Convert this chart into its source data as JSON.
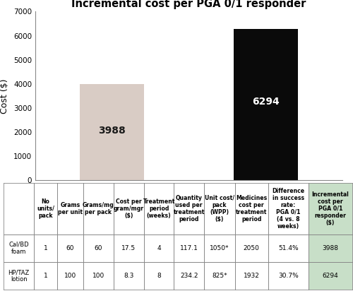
{
  "title": "Incremental cost per PGA 0/1 responder",
  "categories": [
    "Cal/BD foam",
    "HP/TAZ lotion"
  ],
  "values": [
    3988,
    6294
  ],
  "bar_colors": [
    "#d9ccc5",
    "#0a0a0a"
  ],
  "bar_label_colors": [
    "#1a1a1a",
    "#ffffff"
  ],
  "ylabel": "Cost ($)",
  "ylim": [
    0,
    7000
  ],
  "yticks": [
    0,
    1000,
    2000,
    3000,
    4000,
    5000,
    6000,
    7000
  ],
  "table_headers": [
    "No\nunits/\npack",
    "Grams\nper unit",
    "Grams/mg\nper pack",
    "Cost per\ngram/mgr\n($)",
    "Treatment\nperiod\n(weeks)",
    "Quantity\nused per\ntreatment\nperiod",
    "Unit cost/\npack\n(WPP)\n($)",
    "Medicines\ncost per\ntreatment\nperiod",
    "Difference\nin success\nrate:\nPGA 0/1\n(4 vs. 8\nweeks)",
    "Incremental\ncost per\nPGA 0/1\nresponder\n($)"
  ],
  "row_labels": [
    "Cal/BD\nfoam",
    "HP/TAZ\nlotion"
  ],
  "table_data": [
    [
      "1",
      "60",
      "60",
      "17.5",
      "4",
      "117.1",
      "1050*",
      "2050",
      "51.4%",
      "3988"
    ],
    [
      "1",
      "100",
      "100",
      "8.3",
      "8",
      "234.2",
      "825*",
      "1932",
      "30.7%",
      "6294"
    ]
  ],
  "last_col_bg": "#c8dfc8",
  "background_color": "#ffffff",
  "border_color": "#888888"
}
